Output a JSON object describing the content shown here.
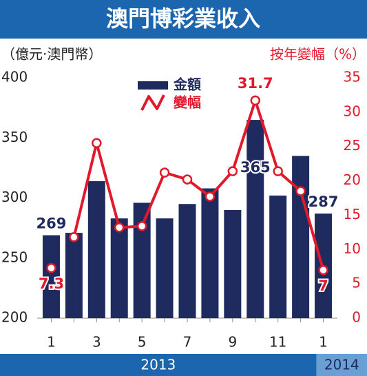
{
  "chart_data": {
    "type": "bar-line",
    "title": "澳門博彩業收入",
    "y_label": "（億元‧澳門幣）",
    "y2_label": "按年變幅（%）",
    "categories": [
      "1",
      null,
      "3",
      null,
      "5",
      null,
      "7",
      null,
      "9",
      null,
      "11",
      null,
      "1"
    ],
    "years": [
      {
        "label": "2013",
        "color": "#1c66b0"
      },
      {
        "label": "2014",
        "color": "#6a9fd6"
      }
    ],
    "series": [
      {
        "name": "金額",
        "type": "bar",
        "color": "#1f2a5e",
        "values": [
          269,
          271,
          314,
          283,
          296,
          283,
          295,
          308,
          290,
          365,
          302,
          335,
          287
        ],
        "value_labels": [
          "269",
          null,
          null,
          null,
          null,
          null,
          null,
          null,
          null,
          "365",
          null,
          null,
          "287"
        ]
      },
      {
        "name": "變幅",
        "type": "line",
        "axis": "y2",
        "color": "#e0192b",
        "values": [
          7.3,
          11.8,
          25.5,
          13.2,
          13.4,
          21.2,
          20.2,
          17.7,
          21.4,
          31.7,
          21.4,
          18.5,
          7
        ],
        "value_labels": [
          "7.3",
          null,
          null,
          null,
          null,
          null,
          null,
          null,
          null,
          "31.7",
          null,
          null,
          "7"
        ]
      }
    ],
    "ylim": [
      200,
      400
    ],
    "yticks": [
      200,
      250,
      300,
      350,
      400
    ],
    "y2lim": [
      0,
      35
    ],
    "y2ticks": [
      0,
      5,
      10,
      15,
      20,
      25,
      30,
      35
    ]
  }
}
